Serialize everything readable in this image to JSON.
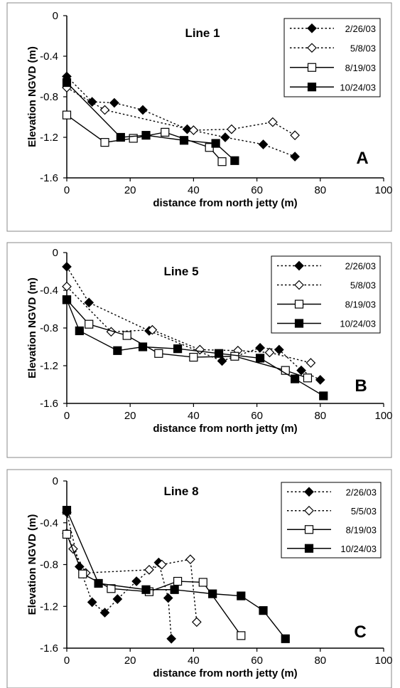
{
  "chart_data": [
    {
      "type": "line",
      "title": "Line 1",
      "panel_label": "A",
      "xlabel": "distance from north jetty (m)",
      "ylabel": "Elevation NGVD (m)",
      "xlim": [
        0,
        100
      ],
      "ylim": [
        -1.6,
        0
      ],
      "xticks": [
        "0",
        "20",
        "40",
        "60",
        "80",
        "100"
      ],
      "yticks": [
        "0",
        "-0.4",
        "-0.8",
        "-1.2",
        "-1.6"
      ],
      "legend_position": "top-right",
      "series": [
        {
          "name": "2/26/03",
          "style": "dotted",
          "marker": "diamond-filled",
          "x": [
            0,
            8,
            15,
            24,
            38,
            50,
            62,
            72
          ],
          "y": [
            -0.6,
            -0.85,
            -0.86,
            -0.93,
            -1.12,
            -1.2,
            -1.27,
            -1.39
          ]
        },
        {
          "name": "5/8/03",
          "style": "dotted",
          "marker": "diamond-open",
          "x": [
            0,
            12,
            40,
            52,
            65,
            72
          ],
          "y": [
            -0.71,
            -0.93,
            -1.13,
            -1.12,
            -1.05,
            -1.18
          ]
        },
        {
          "name": "8/19/03",
          "style": "solid",
          "marker": "square-open",
          "x": [
            0,
            12,
            21,
            31,
            45,
            49
          ],
          "y": [
            -0.98,
            -1.25,
            -1.21,
            -1.15,
            -1.3,
            -1.44
          ]
        },
        {
          "name": "10/24/03",
          "style": "solid",
          "marker": "square-filled",
          "x": [
            0,
            17,
            25,
            37,
            47,
            53
          ],
          "y": [
            -0.66,
            -1.2,
            -1.18,
            -1.23,
            -1.26,
            -1.43
          ]
        }
      ]
    },
    {
      "type": "line",
      "title": "Line 5",
      "panel_label": "B",
      "xlabel": "distance from north jetty (m)",
      "ylabel": "Elevation NGVD (m)",
      "xlim": [
        0,
        100
      ],
      "ylim": [
        -1.6,
        0
      ],
      "xticks": [
        "0",
        "20",
        "40",
        "60",
        "80",
        "100"
      ],
      "yticks": [
        "0",
        "-0.4",
        "-0.8",
        "-1.2",
        "-1.6"
      ],
      "legend_position": "top-right",
      "series": [
        {
          "name": "2/26/03",
          "style": "dotted",
          "marker": "diamond-filled",
          "x": [
            0,
            7,
            26,
            49,
            61,
            67,
            74,
            80
          ],
          "y": [
            -0.15,
            -0.53,
            -0.83,
            -1.15,
            -1.01,
            -1.03,
            -1.25,
            -1.35
          ]
        },
        {
          "name": "5/8/03",
          "style": "dotted",
          "marker": "diamond-open",
          "x": [
            0,
            14,
            27,
            42,
            54,
            64,
            77
          ],
          "y": [
            -0.36,
            -0.84,
            -0.82,
            -1.03,
            -1.04,
            -1.06,
            -1.17
          ]
        },
        {
          "name": "8/19/03",
          "style": "solid",
          "marker": "square-open",
          "x": [
            0,
            7,
            19,
            29,
            40,
            53,
            69,
            76
          ],
          "y": [
            -0.5,
            -0.76,
            -0.88,
            -1.07,
            -1.11,
            -1.1,
            -1.25,
            -1.33
          ]
        },
        {
          "name": "10/24/03",
          "style": "solid",
          "marker": "square-filled",
          "x": [
            0,
            4,
            16,
            24,
            35,
            48,
            61,
            72,
            81
          ],
          "y": [
            -0.5,
            -0.83,
            -1.04,
            -1.0,
            -1.02,
            -1.07,
            -1.12,
            -1.34,
            -1.52
          ]
        }
      ]
    },
    {
      "type": "line",
      "title": "Line 8",
      "panel_label": "C",
      "xlabel": "distance from north jetty (m)",
      "ylabel": "Elevation NGVD (m)",
      "xlim": [
        0,
        100
      ],
      "ylim": [
        -1.6,
        0
      ],
      "xticks": [
        "0",
        "20",
        "40",
        "60",
        "80",
        "100"
      ],
      "yticks": [
        "0",
        "-0.4",
        "-0.8",
        "-1.2",
        "-1.6"
      ],
      "legend_position": "top-right",
      "series": [
        {
          "name": "2/26/03",
          "style": "dotted",
          "marker": "diamond-filled",
          "x": [
            0,
            4,
            8,
            12,
            16,
            22,
            29,
            32,
            33
          ],
          "y": [
            -0.3,
            -0.82,
            -1.16,
            -1.26,
            -1.13,
            -0.96,
            -0.78,
            -1.12,
            -1.51
          ]
        },
        {
          "name": "5/5/03",
          "style": "dotted",
          "marker": "diamond-open",
          "x": [
            0,
            2,
            6,
            26,
            30,
            39,
            41
          ],
          "y": [
            -0.5,
            -0.65,
            -0.88,
            -0.85,
            -0.8,
            -0.75,
            -1.35
          ]
        },
        {
          "name": "8/19/03",
          "style": "solid",
          "marker": "square-open",
          "x": [
            0,
            5,
            14,
            26,
            35,
            43,
            55
          ],
          "y": [
            -0.51,
            -0.89,
            -1.03,
            -1.06,
            -0.96,
            -0.97,
            -1.48
          ]
        },
        {
          "name": "10/24/03",
          "style": "solid",
          "marker": "square-filled",
          "x": [
            0,
            10,
            25,
            34,
            46,
            55,
            62,
            69
          ],
          "y": [
            -0.28,
            -0.98,
            -1.04,
            -1.04,
            -1.08,
            -1.1,
            -1.24,
            -1.51
          ]
        }
      ]
    }
  ]
}
